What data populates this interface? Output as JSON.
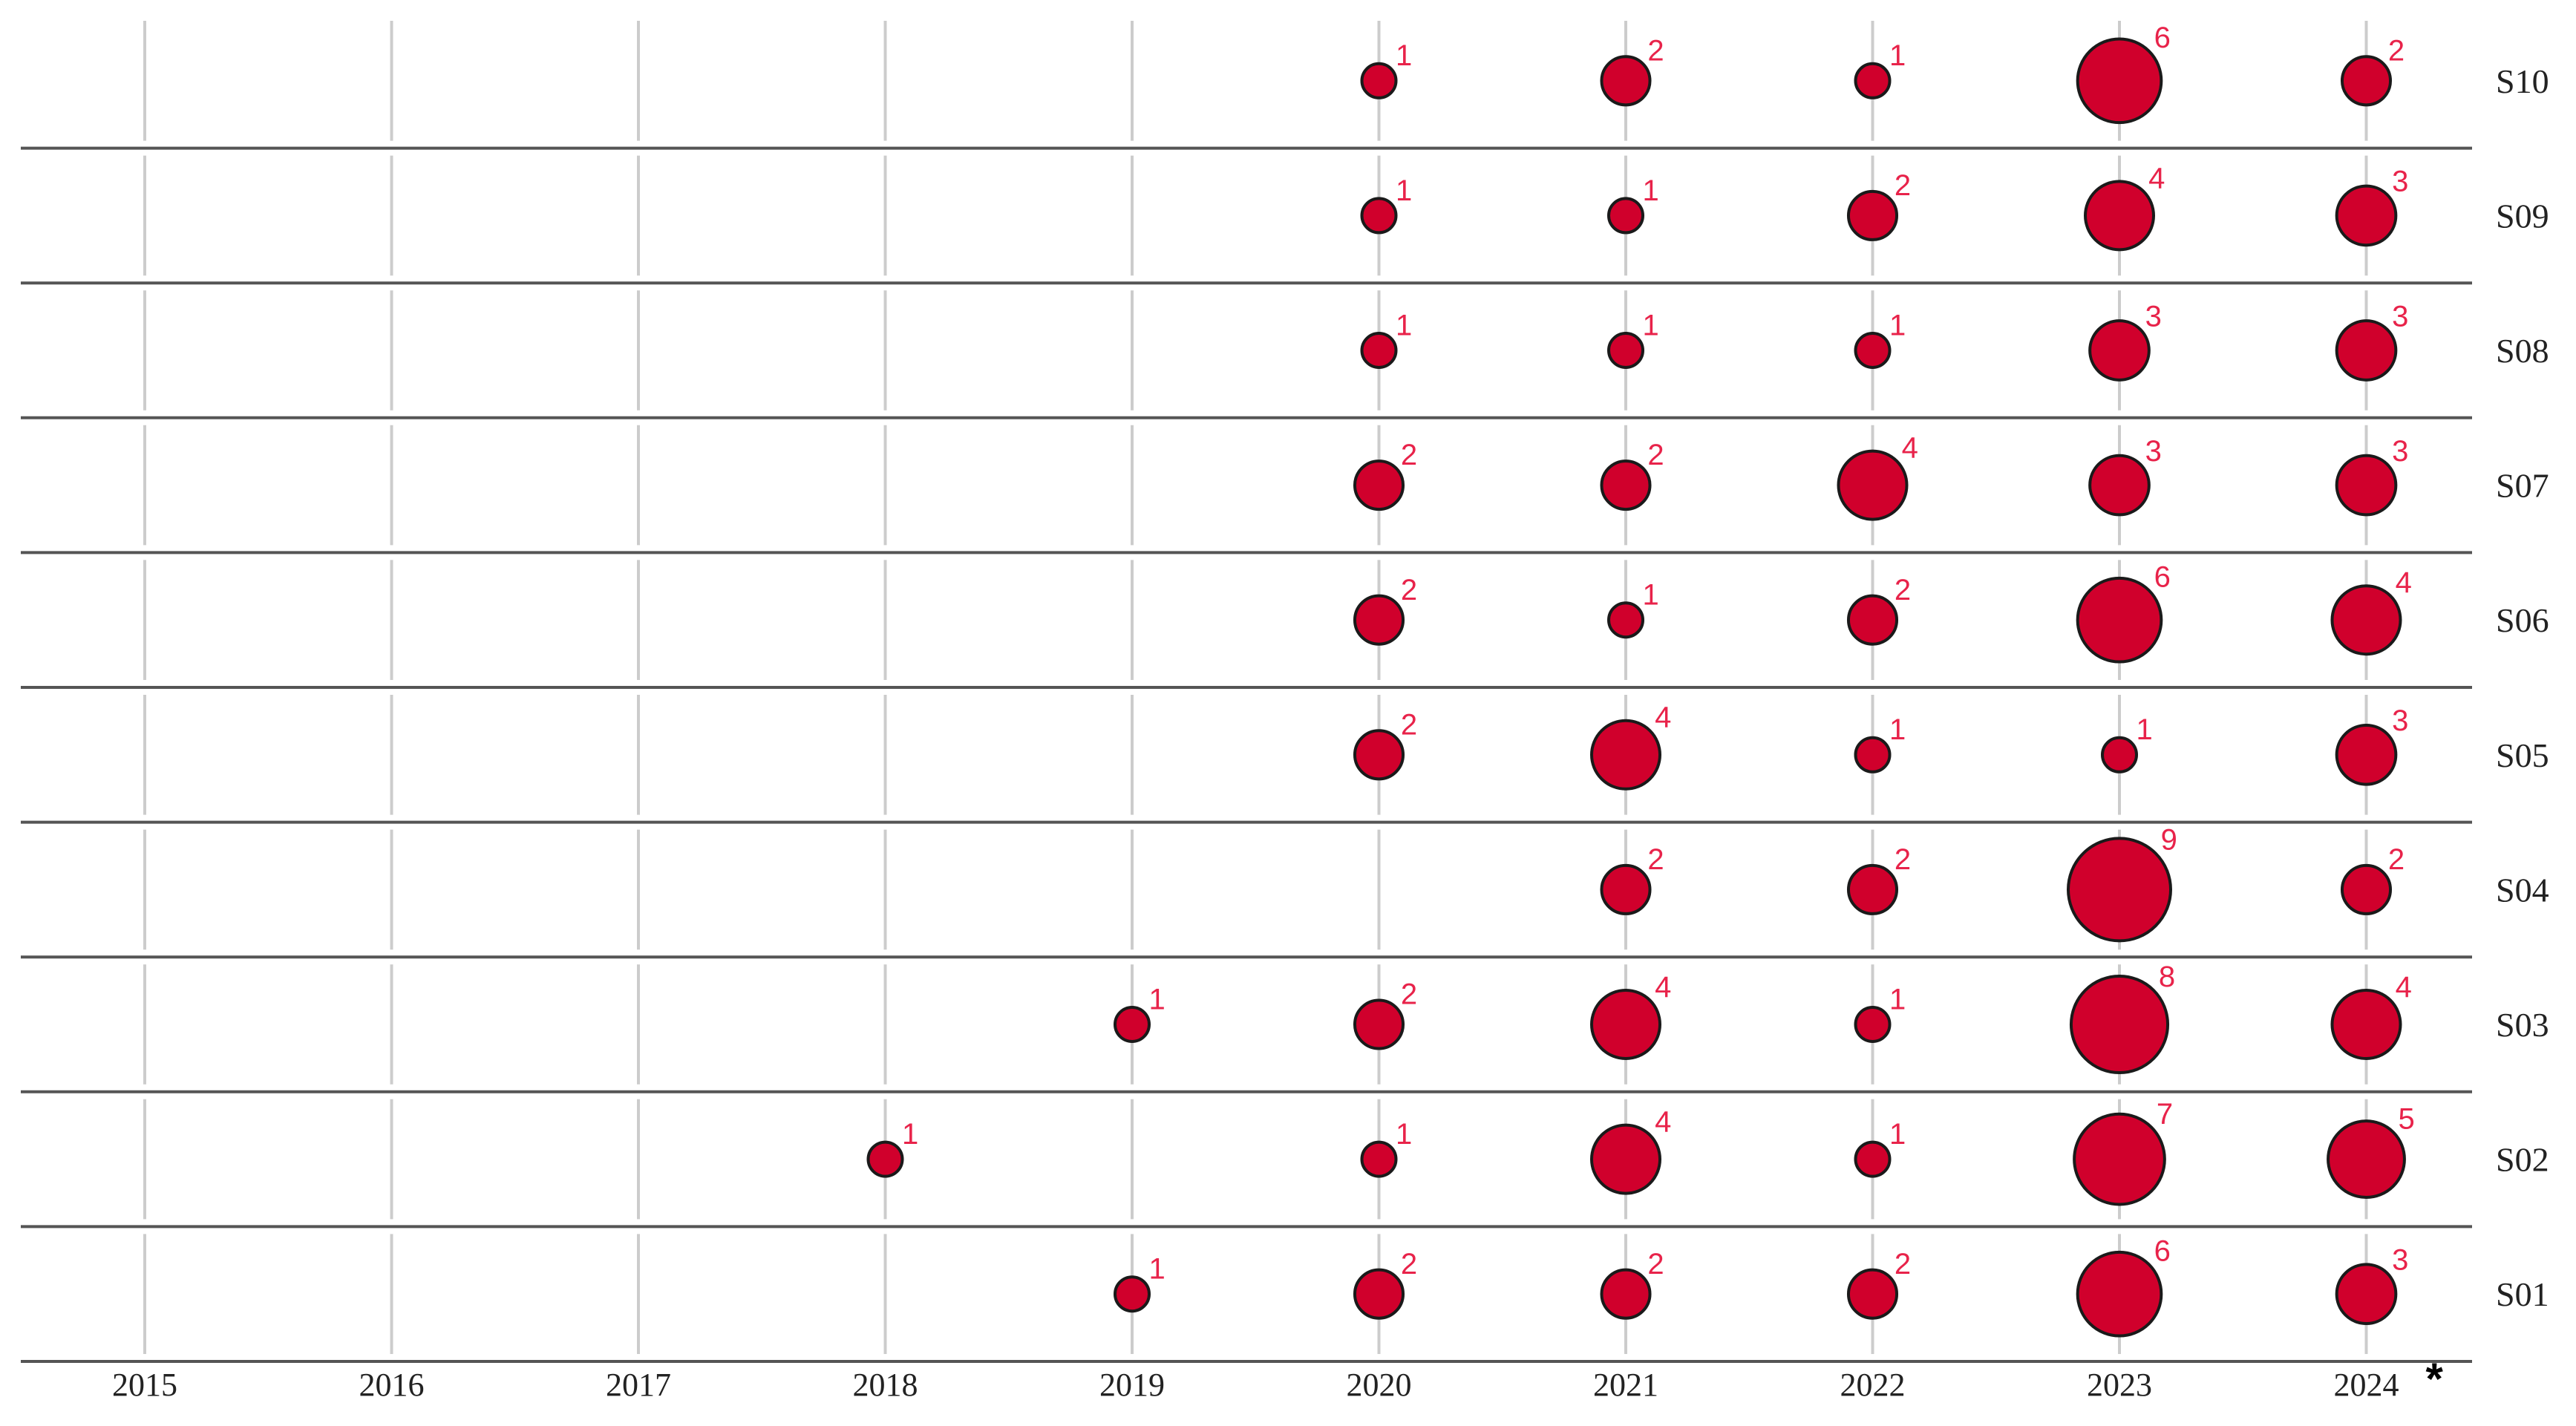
{
  "chart_data": {
    "type": "scatter",
    "subtype": "bubble-timeline",
    "years": [
      "2015",
      "2016",
      "2017",
      "2018",
      "2019",
      "2020",
      "2021",
      "2022",
      "2023",
      "2024"
    ],
    "year_note": "*",
    "rows": [
      {
        "label": "S10",
        "values": {
          "2020": 1,
          "2021": 2,
          "2022": 1,
          "2023": 6,
          "2024": 2
        }
      },
      {
        "label": "S09",
        "values": {
          "2020": 1,
          "2021": 1,
          "2022": 2,
          "2023": 4,
          "2024": 3
        }
      },
      {
        "label": "S08",
        "values": {
          "2020": 1,
          "2021": 1,
          "2022": 1,
          "2023": 3,
          "2024": 3
        }
      },
      {
        "label": "S07",
        "values": {
          "2020": 2,
          "2021": 2,
          "2022": 4,
          "2023": 3,
          "2024": 3
        }
      },
      {
        "label": "S06",
        "values": {
          "2020": 2,
          "2021": 1,
          "2022": 2,
          "2023": 6,
          "2024": 4
        }
      },
      {
        "label": "S05",
        "values": {
          "2020": 2,
          "2021": 4,
          "2022": 1,
          "2023": 1,
          "2024": 3
        }
      },
      {
        "label": "S04",
        "values": {
          "2021": 2,
          "2022": 2,
          "2023": 9,
          "2024": 2
        }
      },
      {
        "label": "S03",
        "values": {
          "2019": 1,
          "2020": 2,
          "2021": 4,
          "2022": 1,
          "2023": 8,
          "2024": 4
        }
      },
      {
        "label": "S02",
        "values": {
          "2018": 1,
          "2020": 1,
          "2021": 4,
          "2022": 1,
          "2023": 7,
          "2024": 5
        }
      },
      {
        "label": "S01",
        "values": {
          "2019": 1,
          "2020": 2,
          "2021": 2,
          "2022": 2,
          "2023": 6,
          "2024": 3
        }
      }
    ],
    "colors": {
      "bubble_fill": "#d0002c",
      "bubble_stroke": "#1a1a1a",
      "label_text": "#e8234a",
      "grid_line": "#cccccc",
      "row_line": "#555555"
    }
  }
}
